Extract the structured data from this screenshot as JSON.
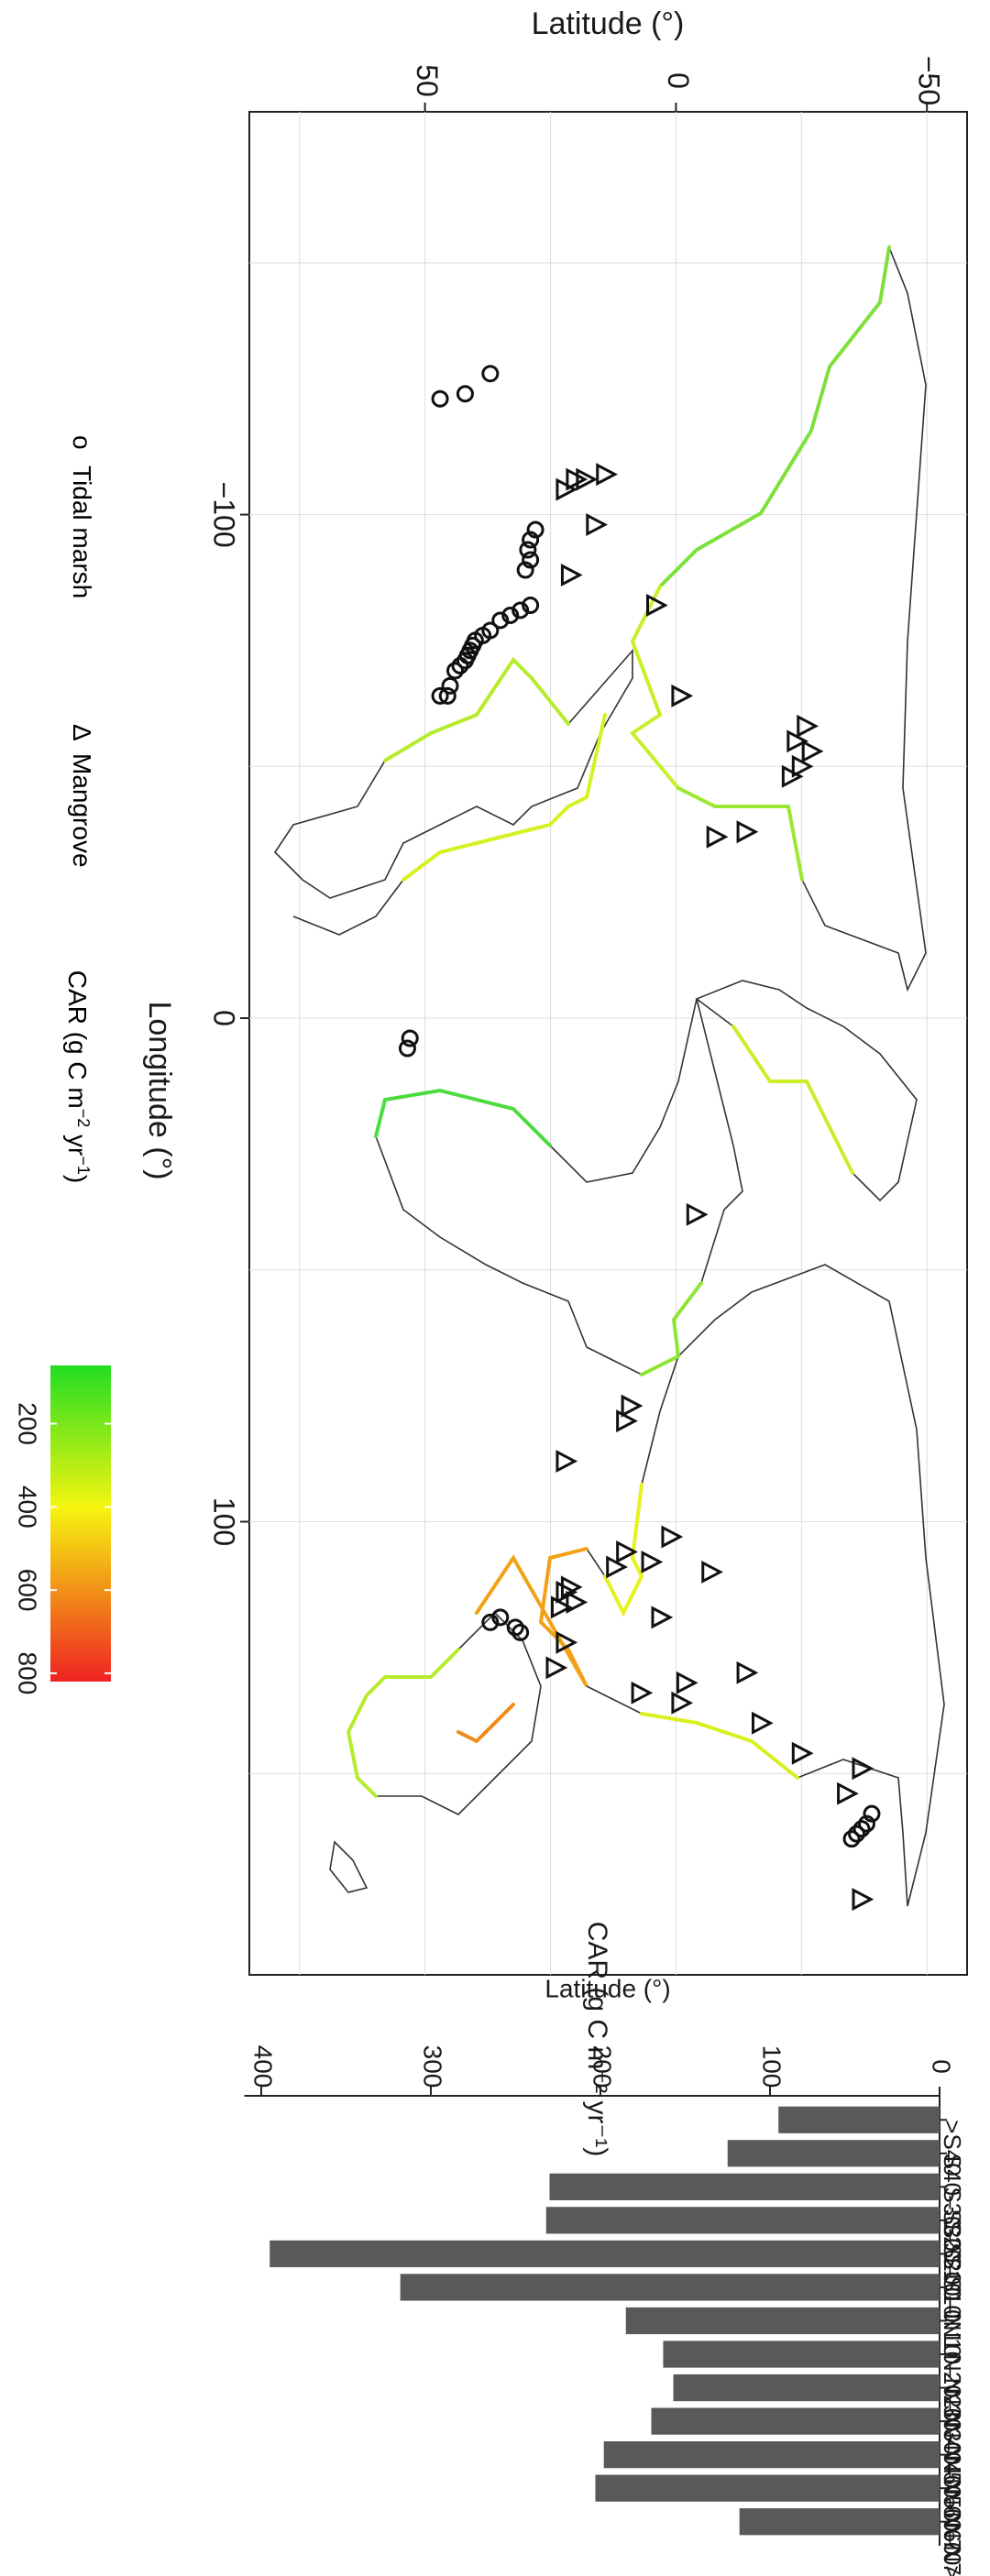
{
  "colors": {
    "bar": "#595959",
    "coast": "#333333",
    "land": "#000000",
    "gradient_low": "#22dd22",
    "gradient_mid": "#f5f50f",
    "gradient_high": "#ee2222",
    "gridline": "#dddddd"
  },
  "legend": {
    "marsh_symbol": "o",
    "marsh_label": "Tidal marsh",
    "mangrove_symbol": "Δ",
    "mangrove_label": "Mangrove",
    "colorbar_title_prefix": "CAR (g C m",
    "colorbar_title_sup1": "−2",
    "colorbar_title_mid": " yr",
    "colorbar_title_sup2": "−1",
    "colorbar_title_suffix": ")",
    "colorbar_ticks": [
      200,
      400,
      600,
      800
    ],
    "colorbar_range": [
      60,
      820
    ]
  },
  "chart_data": [
    {
      "type": "scatter",
      "orientation": "rotated-90-clockwise",
      "xlabel": "Longitude (°)",
      "ylabel": "Latitude (°)",
      "xlim": [
        -180,
        190
      ],
      "ylim": [
        -58,
        85
      ],
      "xticks": [
        -100,
        0,
        100
      ],
      "yticks": [
        -50,
        0,
        50
      ],
      "grid": true,
      "series": [
        {
          "name": "Tidal marsh",
          "marker": "circle",
          "points": [
            {
              "x": -128,
              "y": 37
            },
            {
              "x": -123,
              "y": 47
            },
            {
              "x": -124,
              "y": 42
            },
            {
              "x": -97,
              "y": 28
            },
            {
              "x": -95,
              "y": 29
            },
            {
              "x": -93,
              "y": 29.5
            },
            {
              "x": -91,
              "y": 29
            },
            {
              "x": -89,
              "y": 30
            },
            {
              "x": -82,
              "y": 29
            },
            {
              "x": -81,
              "y": 31
            },
            {
              "x": -80,
              "y": 33
            },
            {
              "x": -79,
              "y": 35
            },
            {
              "x": -77,
              "y": 37
            },
            {
              "x": -76,
              "y": 38.5
            },
            {
              "x": -75,
              "y": 40
            },
            {
              "x": -74,
              "y": 40.5
            },
            {
              "x": -73,
              "y": 41
            },
            {
              "x": -72,
              "y": 41.5
            },
            {
              "x": -71,
              "y": 42
            },
            {
              "x": -70,
              "y": 43
            },
            {
              "x": -69,
              "y": 44
            },
            {
              "x": -66,
              "y": 45
            },
            {
              "x": -64,
              "y": 45.5
            },
            {
              "x": -64,
              "y": 47
            },
            {
              "x": 4,
              "y": 53
            },
            {
              "x": 6,
              "y": 53.5
            },
            {
              "x": 119,
              "y": 35
            },
            {
              "x": 121,
              "y": 32
            },
            {
              "x": 122,
              "y": 31
            },
            {
              "x": 120,
              "y": 37
            },
            {
              "x": 161,
              "y": -37
            },
            {
              "x": 160,
              "y": -38
            },
            {
              "x": 158,
              "y": -39
            },
            {
              "x": 162,
              "y": -36
            },
            {
              "x": 163,
              "y": -35
            }
          ]
        },
        {
          "name": "Mangrove",
          "marker": "triangle",
          "points": [
            {
              "x": -105,
              "y": 22
            },
            {
              "x": -108,
              "y": 14
            },
            {
              "x": -107,
              "y": 18
            },
            {
              "x": -107,
              "y": 20
            },
            {
              "x": -98,
              "y": 16
            },
            {
              "x": -88,
              "y": 21
            },
            {
              "x": -82,
              "y": 4
            },
            {
              "x": -58,
              "y": -26
            },
            {
              "x": -55,
              "y": -24
            },
            {
              "x": -53,
              "y": -27
            },
            {
              "x": -50,
              "y": -25
            },
            {
              "x": -48,
              "y": -23
            },
            {
              "x": -64,
              "y": -1
            },
            {
              "x": -36,
              "y": -8
            },
            {
              "x": -37,
              "y": -14
            },
            {
              "x": 39,
              "y": -4
            },
            {
              "x": 77,
              "y": 9
            },
            {
              "x": 80,
              "y": 10
            },
            {
              "x": 88,
              "y": 22
            },
            {
              "x": 103,
              "y": 1
            },
            {
              "x": 106,
              "y": 10
            },
            {
              "x": 109,
              "y": 12
            },
            {
              "x": 108,
              "y": 5
            },
            {
              "x": 110,
              "y": -7
            },
            {
              "x": 113,
              "y": 21
            },
            {
              "x": 114,
              "y": 22
            },
            {
              "x": 116,
              "y": 20
            },
            {
              "x": 117,
              "y": 23
            },
            {
              "x": 119,
              "y": 3
            },
            {
              "x": 124,
              "y": 22
            },
            {
              "x": 129,
              "y": 24
            },
            {
              "x": 130,
              "y": -14
            },
            {
              "x": 132,
              "y": -2
            },
            {
              "x": 134,
              "y": 7
            },
            {
              "x": 136,
              "y": -1
            },
            {
              "x": 140,
              "y": -17
            },
            {
              "x": 146,
              "y": -25
            },
            {
              "x": 149,
              "y": -37
            },
            {
              "x": 154,
              "y": -34
            },
            {
              "x": 175,
              "y": -37
            }
          ]
        }
      ]
    },
    {
      "type": "bar",
      "orientation": "rotated-90-clockwise",
      "xlabel": "Latitude (°)",
      "ylabel": "CAR (g C m⁻² yr⁻¹)",
      "categories": [
        ">S40",
        "S40–S30",
        "S30–S20",
        "S20–S10",
        "S10–0",
        "0–N10",
        "N10–N20",
        "N20–N30",
        "N30–N40",
        "N40–N50",
        "N50–N60",
        "N60–N70",
        "N70>"
      ],
      "values": [
        95,
        125,
        230,
        232,
        395,
        318,
        185,
        163,
        157,
        170,
        198,
        203,
        118
      ],
      "ylim": [
        0,
        410
      ],
      "yticks": [
        0,
        100,
        200,
        300,
        400
      ],
      "grid": false
    }
  ]
}
